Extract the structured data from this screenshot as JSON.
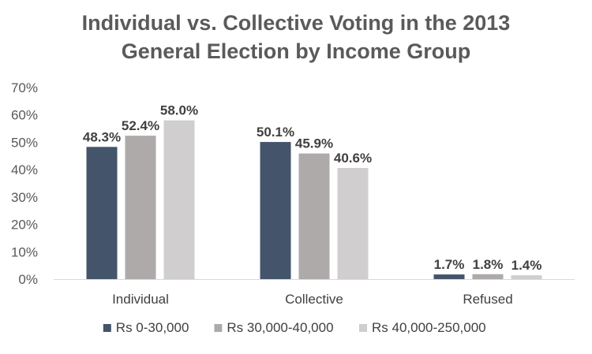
{
  "chart_data": {
    "type": "bar",
    "title": [
      "Individual vs. Collective Voting in the 2013",
      "General Election by Income Group"
    ],
    "categories": [
      "Individual",
      "Collective",
      "Refused"
    ],
    "series": [
      {
        "name": "Rs 0-30,000",
        "values": [
          48.3,
          50.1,
          1.7
        ],
        "color": "#44546a"
      },
      {
        "name": "Rs 30,000-40,000",
        "values": [
          52.4,
          45.9,
          1.8
        ],
        "color": "#aeaaaa"
      },
      {
        "name": "Rs 40,000-250,000",
        "values": [
          58.0,
          40.6,
          1.4
        ],
        "color": "#d0cece"
      }
    ],
    "ylim": [
      0,
      70
    ],
    "yticks": [
      "0%",
      "10%",
      "20%",
      "30%",
      "40%",
      "50%",
      "60%",
      "70%"
    ],
    "value_format": "percent-1dp",
    "grid": false,
    "legend_position": "bottom"
  }
}
